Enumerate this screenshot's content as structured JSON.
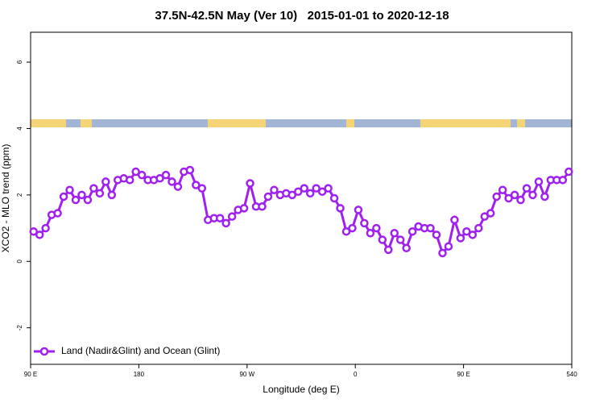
{
  "chart_data": {
    "type": "line",
    "title": "37.5N-42.5N May (Ver 10)   2015-01-01 to 2020-12-18",
    "xlabel": "Longitude (deg E)",
    "ylabel": "XCO2 - MLO trend (ppm)",
    "xlim": [
      90,
      540
    ],
    "ylim": [
      -3.1,
      6.9
    ],
    "xticks": [
      {
        "value": 90,
        "label": "90 E"
      },
      180,
      {
        "value": 270,
        "label": "90 W"
      },
      {
        "value": 360,
        "label": "0"
      },
      {
        "value": 450,
        "label": "90 E"
      },
      540
    ],
    "yticks": [
      -2,
      0,
      2,
      4,
      6
    ],
    "legend": "bottomleft",
    "x": [
      92.5,
      97.5,
      102.5,
      107.5,
      112.5,
      117.5,
      122.5,
      127.5,
      132.5,
      137.5,
      142.5,
      147.5,
      152.5,
      157.5,
      162.5,
      167.5,
      172.5,
      177.5,
      182.5,
      187.5,
      192.5,
      197.5,
      202.5,
      207.5,
      212.5,
      217.5,
      222.5,
      227.5,
      232.5,
      237.5,
      242.5,
      247.5,
      252.5,
      257.5,
      262.5,
      267.5,
      272.5,
      277.5,
      282.5,
      287.5,
      292.5,
      297.5,
      302.5,
      307.5,
      312.5,
      317.5,
      322.5,
      327.5,
      332.5,
      337.5,
      342.5,
      347.5,
      352.5,
      357.5,
      362.5,
      367.5,
      372.5,
      377.5,
      382.5,
      387.5,
      392.5,
      397.5,
      402.5,
      407.5,
      412.5,
      417.5,
      422.5,
      427.5,
      432.5,
      437.5,
      442.5,
      447.5,
      452.5,
      457.5,
      462.5,
      467.5,
      472.5,
      477.5,
      482.5,
      487.5,
      492.5,
      497.5,
      502.5,
      507.5,
      512.5,
      517.5,
      522.5,
      527.5,
      532.5,
      537.5
    ],
    "series": [
      {
        "name": "Land (Nadir&Glint) and Ocean (Glint)",
        "color": "#a020f0",
        "values": [
          0.9,
          0.8,
          1.0,
          1.4,
          1.45,
          1.95,
          2.15,
          1.85,
          2.0,
          1.85,
          2.2,
          2.05,
          2.4,
          2.0,
          2.45,
          2.5,
          2.45,
          2.7,
          2.6,
          2.45,
          2.45,
          2.5,
          2.6,
          2.4,
          2.25,
          2.7,
          2.75,
          2.3,
          2.2,
          1.25,
          1.3,
          1.3,
          1.15,
          1.35,
          1.55,
          1.6,
          2.35,
          1.65,
          1.65,
          1.95,
          2.15,
          2.0,
          2.05,
          2.0,
          2.1,
          2.2,
          2.05,
          2.2,
          2.1,
          2.2,
          1.9,
          1.6,
          0.9,
          1.0,
          1.55,
          1.15,
          0.85,
          1.0,
          0.65,
          0.35,
          0.85,
          0.65,
          0.4,
          0.9,
          1.05,
          1.0,
          1.0,
          0.8,
          0.25,
          0.45,
          1.25,
          0.7,
          0.9,
          0.8,
          1.0,
          1.35,
          1.45,
          1.95,
          2.15,
          1.9,
          2.0,
          1.85,
          2.2,
          2.0,
          2.4,
          1.95,
          2.45,
          2.45,
          2.45,
          2.7
        ]
      }
    ]
  }
}
